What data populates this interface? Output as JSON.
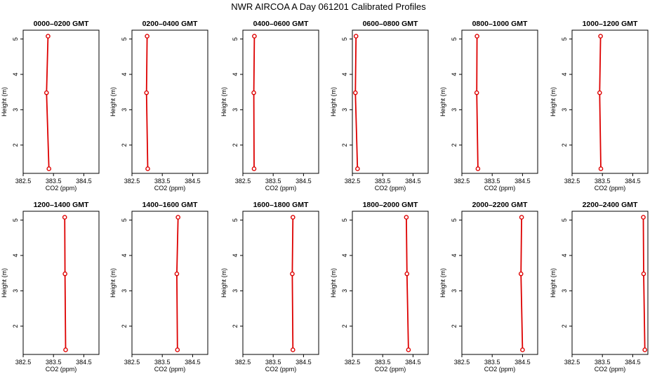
{
  "title": "NWR AIRCOA A  Day 061201  Calibrated Profiles",
  "chart_data": {
    "type": "line",
    "xlabel": "CO2 (ppm)",
    "ylabel": "Height (m)",
    "xticks": [
      "382.5",
      "383.5",
      "384.5"
    ],
    "xlim": [
      382.5,
      385.0
    ],
    "yticks": [
      2,
      3,
      4,
      5
    ],
    "ylim": [
      1.2,
      5.25
    ],
    "colors": {
      "line": "#dd0000",
      "marker": "#dd0000",
      "axis": "#000000"
    },
    "panels": [
      {
        "title": "0000–0200 GMT",
        "points": [
          [
            383.32,
            5.08
          ],
          [
            383.27,
            3.48
          ],
          [
            383.35,
            1.33
          ]
        ]
      },
      {
        "title": "0200–0400 GMT",
        "points": [
          [
            383.0,
            5.08
          ],
          [
            382.98,
            3.48
          ],
          [
            383.02,
            1.33
          ]
        ]
      },
      {
        "title": "0400–0600 GMT",
        "points": [
          [
            382.88,
            5.08
          ],
          [
            382.86,
            3.48
          ],
          [
            382.87,
            1.33
          ]
        ]
      },
      {
        "title": "0600–0800 GMT",
        "points": [
          [
            382.62,
            5.08
          ],
          [
            382.6,
            3.48
          ],
          [
            382.67,
            1.33
          ]
        ]
      },
      {
        "title": "0800–1000 GMT",
        "points": [
          [
            383.0,
            5.08
          ],
          [
            382.99,
            3.48
          ],
          [
            383.03,
            1.33
          ]
        ]
      },
      {
        "title": "1000–1200 GMT",
        "points": [
          [
            383.44,
            5.08
          ],
          [
            383.41,
            3.48
          ],
          [
            383.45,
            1.33
          ]
        ]
      },
      {
        "title": "1200–1400 GMT",
        "points": [
          [
            383.87,
            5.08
          ],
          [
            383.88,
            3.48
          ],
          [
            383.9,
            1.33
          ]
        ]
      },
      {
        "title": "1400–1600 GMT",
        "points": [
          [
            384.02,
            5.08
          ],
          [
            383.98,
            3.48
          ],
          [
            384.0,
            1.33
          ]
        ]
      },
      {
        "title": "1600–1800 GMT",
        "points": [
          [
            384.15,
            5.08
          ],
          [
            384.13,
            3.48
          ],
          [
            384.15,
            1.33
          ]
        ]
      },
      {
        "title": "1800–2000 GMT",
        "points": [
          [
            384.28,
            5.08
          ],
          [
            384.3,
            3.48
          ],
          [
            384.35,
            1.33
          ]
        ]
      },
      {
        "title": "2000–2200 GMT",
        "points": [
          [
            384.47,
            5.08
          ],
          [
            384.45,
            3.48
          ],
          [
            384.5,
            1.33
          ]
        ]
      },
      {
        "title": "2200–2400 GMT",
        "points": [
          [
            384.85,
            5.08
          ],
          [
            384.86,
            3.48
          ],
          [
            384.9,
            1.33
          ]
        ]
      }
    ]
  }
}
